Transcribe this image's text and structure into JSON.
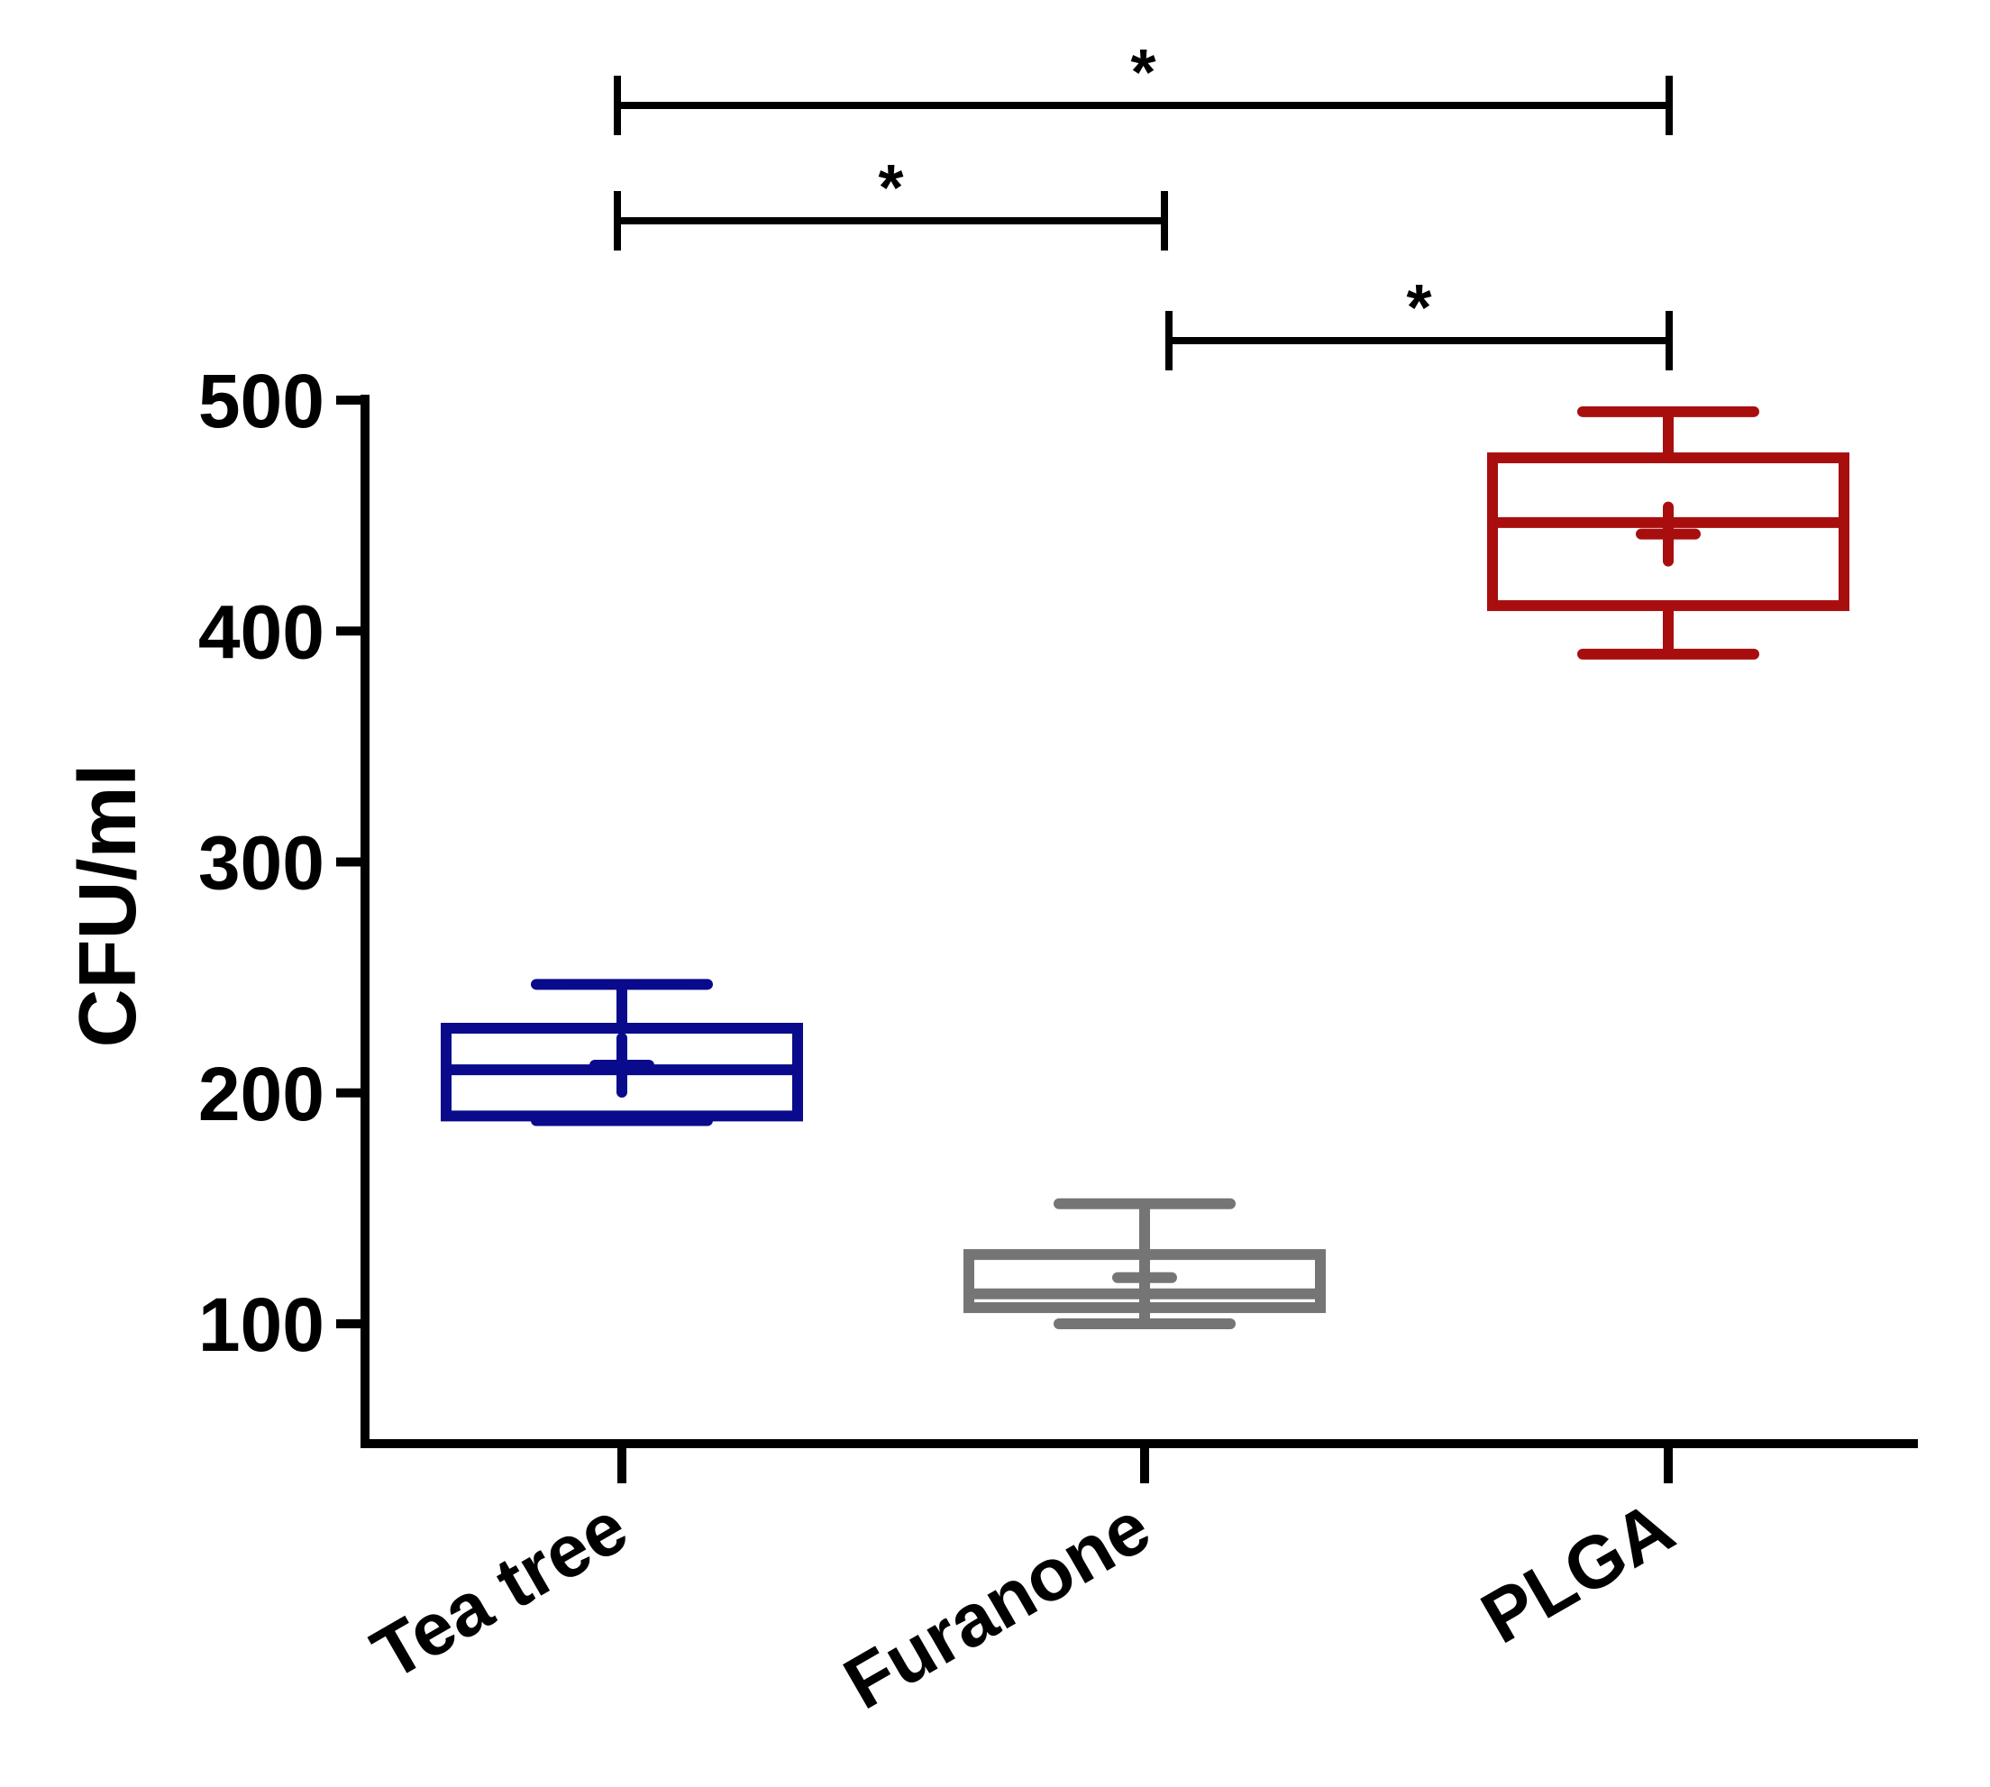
{
  "chart_data": {
    "type": "boxplot",
    "title": "",
    "xlabel": "",
    "ylabel": "CFU/ml",
    "ylim": [
      50,
      500
    ],
    "yticks": [
      100,
      200,
      300,
      400,
      500
    ],
    "ytick_labels": [
      "100",
      "200",
      "300",
      "400",
      "500"
    ],
    "grid": false,
    "legend": "none",
    "categories": [
      "Tea tree",
      "Furanone",
      "PLGA"
    ],
    "series": [
      {
        "category": "Tea tree",
        "color": "#0a0a8c",
        "min": 188,
        "q1": 190,
        "median": 210,
        "q3": 228,
        "max": 247,
        "mean": 212
      },
      {
        "category": "Furanone",
        "color": "#757575",
        "min": 100,
        "q1": 107,
        "median": 113,
        "q3": 130,
        "max": 152,
        "mean": 120
      },
      {
        "category": "PLGA",
        "color": "#a80e0e",
        "min": 390,
        "q1": 411,
        "median": 447,
        "q3": 475,
        "max": 495,
        "mean": 442
      }
    ],
    "significance": [
      {
        "from": "Tea tree",
        "to": "PLGA",
        "label": "*"
      },
      {
        "from": "Tea tree",
        "to": "Furanone",
        "label": "*"
      },
      {
        "from": "Furanone",
        "to": "PLGA",
        "label": "*"
      }
    ]
  }
}
